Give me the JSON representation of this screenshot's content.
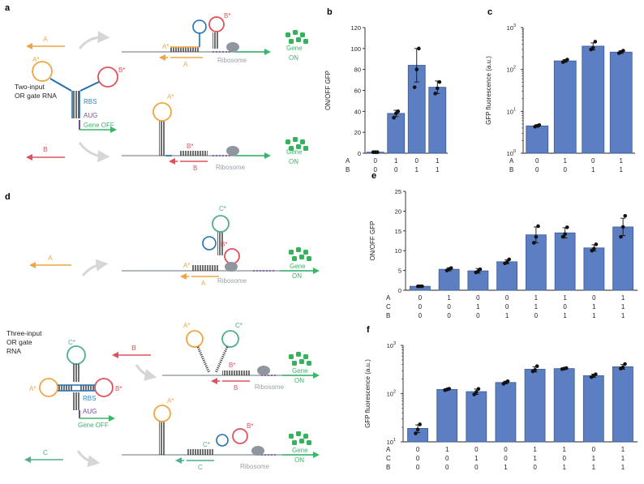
{
  "colors": {
    "bar": "#5b7fc2",
    "bar_edge": "#3d5a93",
    "orange": "#f0a640",
    "red": "#e0505a",
    "teal": "#4fae8c",
    "blue": "#2f86c8",
    "purple": "#7a4a9a",
    "green": "#3bb56a",
    "gray": "#9aa0a6",
    "ribosome": "#8f969d",
    "dots": "#35b35a",
    "arrow_gray": "#d4d6d8"
  },
  "panels": {
    "a": {
      "letter": "a",
      "gate_label": [
        "Two-input",
        "OR gate RNA"
      ],
      "A": "A",
      "B": "B",
      "Astar": "A*",
      "Bstar": "B*",
      "rbs": "RBS",
      "aug": "AUG",
      "gene_off": "Gene OFF",
      "ribosome": "Ribosome",
      "gene": "Gene",
      "on": "ON"
    },
    "d": {
      "letter": "d",
      "gate_label": [
        "Three-input",
        "OR gate",
        "RNA"
      ],
      "A": "A",
      "B": "B",
      "C": "C",
      "Astar": "A*",
      "Bstar": "B*",
      "Cstar": "C*",
      "rbs": "RBS",
      "aug": "AUG",
      "gene_off": "Gene OFF",
      "ribosome": "Ribosome",
      "gene": "Gene",
      "on": "ON"
    }
  },
  "chart_data": [
    {
      "id": "b",
      "letter": "b",
      "type": "bar",
      "scale": "linear",
      "ylabel": "ON/OFF GFP",
      "ylim": [
        0,
        120
      ],
      "yticks": [
        0,
        20,
        40,
        60,
        80,
        100,
        120
      ],
      "input_rows": [
        {
          "name": "A",
          "values": [
            "0",
            "1",
            "0",
            "1"
          ]
        },
        {
          "name": "B",
          "values": [
            "0",
            "0",
            "1",
            "1"
          ]
        }
      ],
      "values": [
        1,
        38,
        84,
        63
      ],
      "errors": [
        0.5,
        3,
        16,
        6
      ],
      "points": [
        [
          1,
          1,
          1
        ],
        [
          34,
          38,
          40
        ],
        [
          63,
          80,
          100
        ],
        [
          57,
          62,
          68
        ]
      ]
    },
    {
      "id": "c",
      "letter": "c",
      "type": "bar",
      "scale": "log",
      "ylabel": "GFP fluorescence (a.u.)",
      "ylim": [
        1,
        1000
      ],
      "yticks": [
        1,
        10,
        100,
        1000
      ],
      "ytick_labels": [
        "10",
        "10",
        "10",
        "10"
      ],
      "ytick_exponents": [
        "0",
        "1",
        "2",
        "3"
      ],
      "input_rows": [
        {
          "name": "A",
          "values": [
            "0",
            "1",
            "0",
            "1"
          ]
        },
        {
          "name": "B",
          "values": [
            "0",
            "0",
            "1",
            "1"
          ]
        }
      ],
      "values": [
        4.5,
        160,
        360,
        260
      ],
      "errors": [
        0.3,
        12,
        70,
        20
      ],
      "points": [
        [
          4.3,
          4.5,
          4.7
        ],
        [
          150,
          160,
          172
        ],
        [
          300,
          330,
          460
        ],
        [
          245,
          260,
          280
        ]
      ]
    },
    {
      "id": "e",
      "letter": "e",
      "type": "bar",
      "scale": "linear",
      "ylabel": "ON/OFF GFP",
      "ylim": [
        0,
        25
      ],
      "yticks": [
        0,
        5,
        10,
        15,
        20,
        25
      ],
      "input_rows": [
        {
          "name": "A",
          "values": [
            "0",
            "1",
            "0",
            "0",
            "1",
            "1",
            "0",
            "1"
          ]
        },
        {
          "name": "C",
          "values": [
            "0",
            "0",
            "1",
            "0",
            "1",
            "0",
            "1",
            "1"
          ]
        },
        {
          "name": "B",
          "values": [
            "0",
            "0",
            "0",
            "1",
            "0",
            "1",
            "1",
            "1"
          ]
        }
      ],
      "values": [
        1,
        5.3,
        4.9,
        7.2,
        14,
        14.5,
        10.7,
        16
      ],
      "errors": [
        0.1,
        0.4,
        0.6,
        0.5,
        2,
        1.3,
        0.8,
        2.2
      ],
      "points": [
        [
          1,
          1,
          1
        ],
        [
          5,
          5.3,
          5.6
        ],
        [
          4.5,
          4.8,
          5.3
        ],
        [
          6.8,
          7.1,
          7.8
        ],
        [
          12,
          13.5,
          16.2
        ],
        [
          13.5,
          14.2,
          15.9
        ],
        [
          10,
          10.5,
          11.6
        ],
        [
          13.5,
          16,
          18.8
        ]
      ]
    },
    {
      "id": "f",
      "letter": "f",
      "type": "bar",
      "scale": "log",
      "ylabel": "GFP fluorescence (a.u.)",
      "ylim": [
        10,
        1000
      ],
      "yticks": [
        10,
        100,
        1000
      ],
      "ytick_labels": [
        "10",
        "10",
        "10"
      ],
      "ytick_exponents": [
        "1",
        "2",
        "3"
      ],
      "input_rows": [
        {
          "name": "A",
          "values": [
            "0",
            "1",
            "0",
            "0",
            "1",
            "1",
            "0",
            "1"
          ]
        },
        {
          "name": "C",
          "values": [
            "0",
            "0",
            "1",
            "0",
            "1",
            "0",
            "1",
            "1"
          ]
        },
        {
          "name": "B",
          "values": [
            "0",
            "0",
            "0",
            "1",
            "0",
            "1",
            "1",
            "1"
          ]
        }
      ],
      "values": [
        19,
        122,
        110,
        170,
        320,
        330,
        235,
        360
      ],
      "errors": [
        3.5,
        4,
        14,
        10,
        40,
        8,
        18,
        40
      ],
      "points": [
        [
          15,
          18,
          23
        ],
        [
          118,
          122,
          126
        ],
        [
          96,
          108,
          125
        ],
        [
          160,
          170,
          180
        ],
        [
          290,
          310,
          370
        ],
        [
          322,
          330,
          338
        ],
        [
          220,
          235,
          252
        ],
        [
          330,
          350,
          410
        ]
      ]
    }
  ]
}
